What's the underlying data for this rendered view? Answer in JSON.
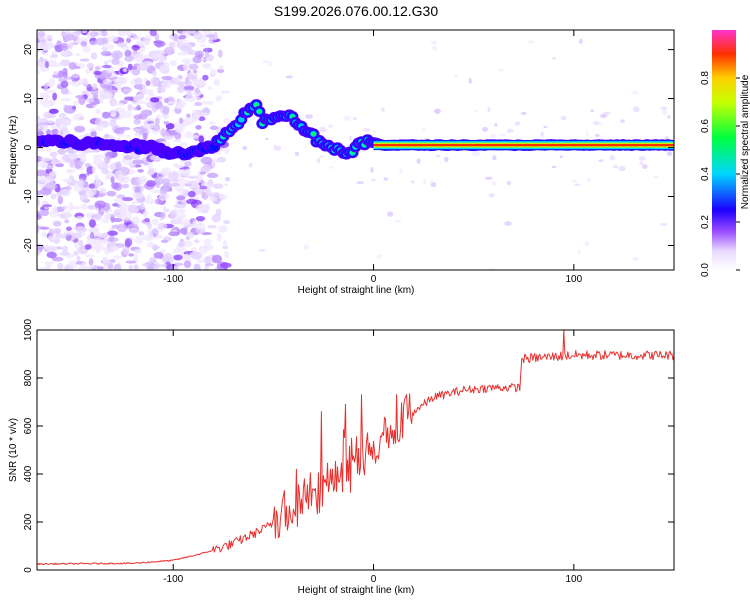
{
  "title": "S199.2026.076.00.12.G30",
  "chart_data": [
    {
      "type": "heatmap",
      "xlabel": "Height of straight line (km)",
      "ylabel": "Frequency (Hz)",
      "xlim": [
        -168,
        150
      ],
      "ylim": [
        -25,
        24
      ],
      "xticks": [
        -100,
        0,
        100
      ],
      "yticks": [
        -20,
        -10,
        0,
        10,
        20
      ],
      "colorbar": {
        "label": "Normalized spectral amplitude",
        "range": [
          0,
          1
        ],
        "ticks": [
          0.0,
          0.2,
          0.4,
          0.6,
          0.8
        ]
      },
      "ridge": [
        {
          "x": -168,
          "f": 1.5
        },
        {
          "x": -150,
          "f": 1.0
        },
        {
          "x": -130,
          "f": 0.5
        },
        {
          "x": -110,
          "f": 0.0
        },
        {
          "x": -100,
          "f": -1.0
        },
        {
          "x": -88,
          "f": -1.0
        },
        {
          "x": -80,
          "f": 0.5
        },
        {
          "x": -70,
          "f": 4.0
        },
        {
          "x": -62,
          "f": 8.0
        },
        {
          "x": -58,
          "f": 9.5
        },
        {
          "x": -56,
          "f": 5.0
        },
        {
          "x": -50,
          "f": 6.5
        },
        {
          "x": -44,
          "f": 7.0
        },
        {
          "x": -36,
          "f": 4.5
        },
        {
          "x": -28,
          "f": 1.5
        },
        {
          "x": -20,
          "f": 0.0
        },
        {
          "x": -12,
          "f": -1.5
        },
        {
          "x": -6,
          "f": 1.0
        },
        {
          "x": 0,
          "f": 1.0
        },
        {
          "x": 5,
          "f": 0.5
        },
        {
          "x": 150,
          "f": 0.5
        }
      ]
    },
    {
      "type": "line",
      "xlabel": "Height of straight line (km)",
      "ylabel": "SNR (10 * v/v)",
      "xlim": [
        -168,
        150
      ],
      "ylim": [
        0,
        1000
      ],
      "xticks": [
        -100,
        0,
        100
      ],
      "yticks": [
        0,
        200,
        400,
        600,
        800,
        1000
      ],
      "series": [
        {
          "name": "SNR",
          "color": "#e8312f",
          "trend": [
            {
              "x": -168,
              "y": 25
            },
            {
              "x": -120,
              "y": 28
            },
            {
              "x": -100,
              "y": 40
            },
            {
              "x": -85,
              "y": 70
            },
            {
              "x": -70,
              "y": 110
            },
            {
              "x": -55,
              "y": 170
            },
            {
              "x": -40,
              "y": 250
            },
            {
              "x": -25,
              "y": 340
            },
            {
              "x": -10,
              "y": 420
            },
            {
              "x": 0,
              "y": 480
            },
            {
              "x": 10,
              "y": 560
            },
            {
              "x": 20,
              "y": 660
            },
            {
              "x": 30,
              "y": 720
            },
            {
              "x": 45,
              "y": 750
            },
            {
              "x": 60,
              "y": 760
            },
            {
              "x": 73,
              "y": 760
            },
            {
              "x": 74,
              "y": 880
            },
            {
              "x": 100,
              "y": 895
            },
            {
              "x": 150,
              "y": 895
            }
          ],
          "peaks": [
            {
              "x": -26,
              "y": 660
            },
            {
              "x": -14,
              "y": 690
            },
            {
              "x": -6,
              "y": 730
            },
            {
              "x": 16,
              "y": 720
            },
            {
              "x": 95,
              "y": 1000
            }
          ]
        }
      ]
    }
  ]
}
